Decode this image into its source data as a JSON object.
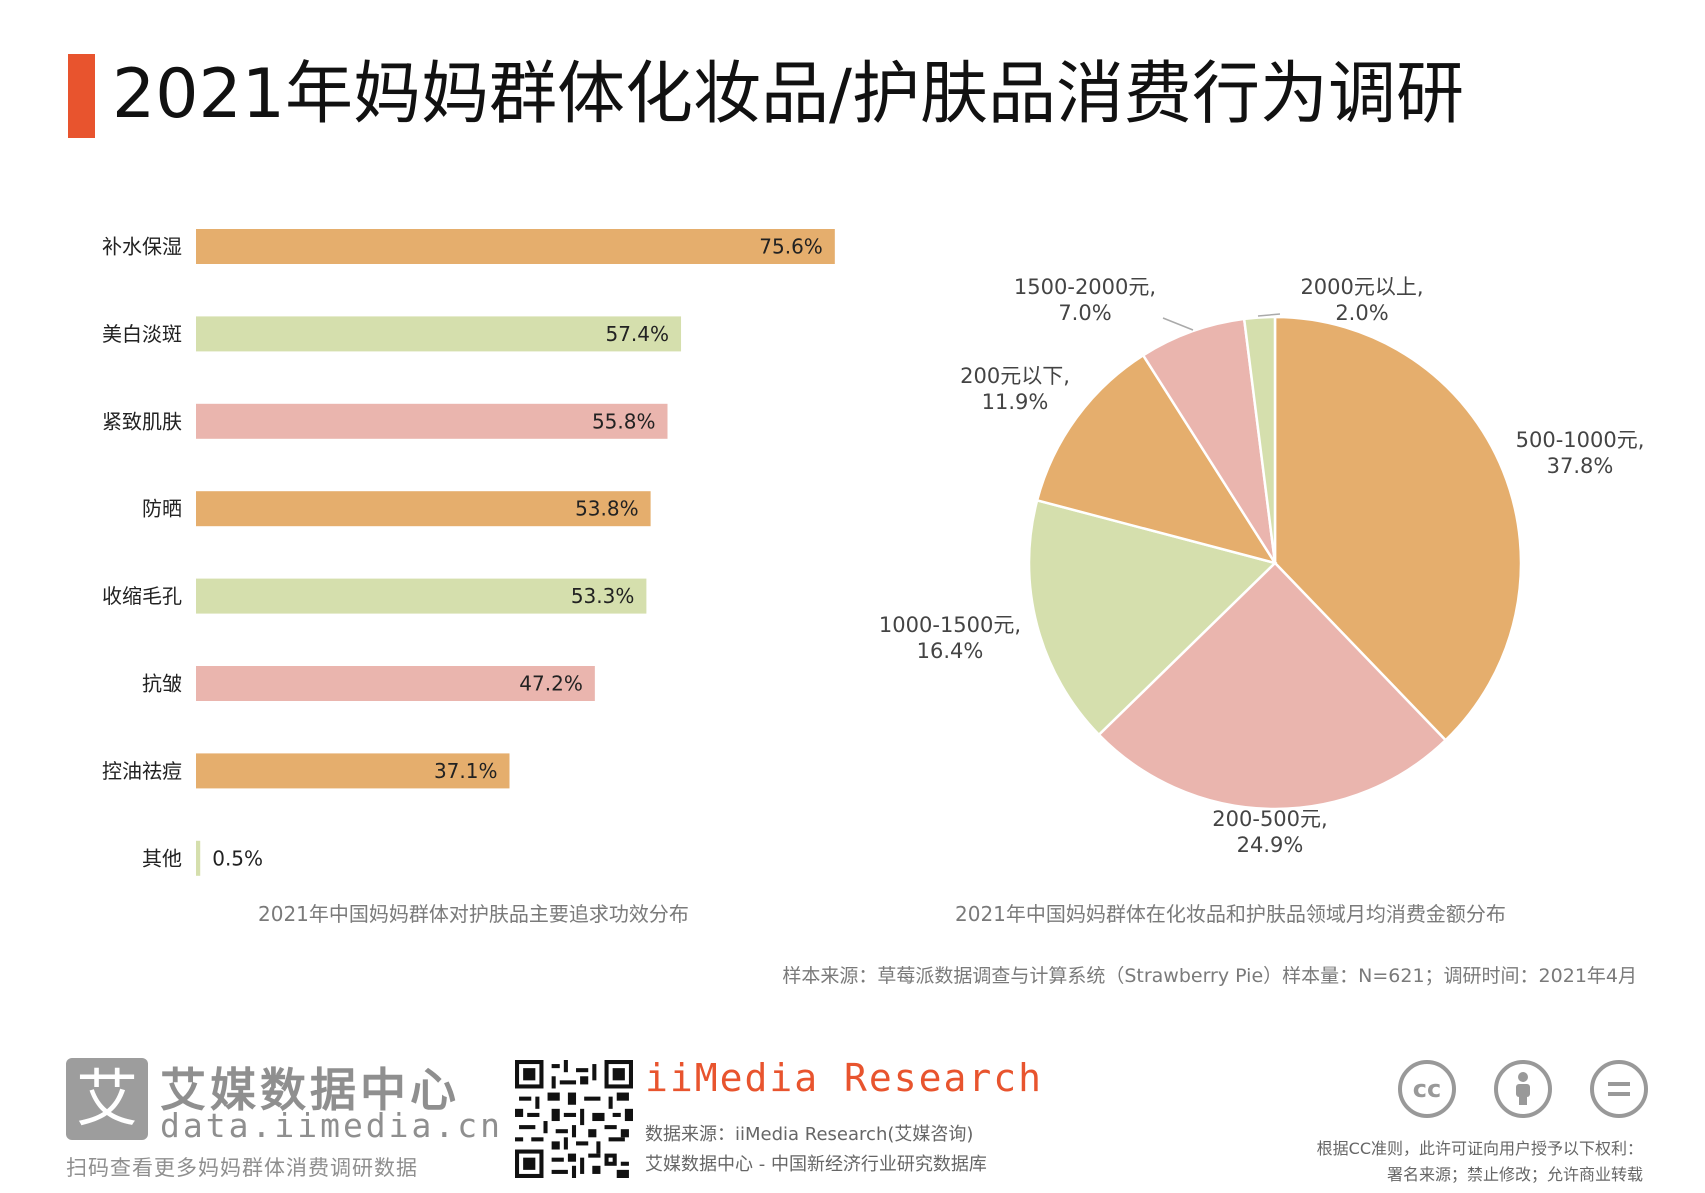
{
  "title": "2021年妈妈群体化妆品/护肤品消费行为调研",
  "chart_data": [
    {
      "type": "bar",
      "orientation": "horizontal",
      "categories": [
        "补水保湿",
        "美白淡斑",
        "紧致肌肤",
        "防晒",
        "收缩毛孔",
        "抗皱",
        "控油祛痘",
        "其他"
      ],
      "values": [
        75.6,
        57.4,
        55.8,
        53.8,
        53.3,
        47.2,
        37.1,
        0.5
      ],
      "value_labels": [
        "75.6%",
        "57.4%",
        "55.8%",
        "53.8%",
        "53.3%",
        "47.2%",
        "37.1%",
        "0.5%"
      ],
      "colors": [
        "#e5ae6d",
        "#d5dfad",
        "#eab5ae",
        "#e5ae6d",
        "#d5dfad",
        "#eab5ae",
        "#e5ae6d",
        "#d5dfad"
      ],
      "unit": "%",
      "xlim": [
        0,
        100
      ],
      "grid": false,
      "caption": "2021年中国妈妈群体对护肤品主要追求功效分布"
    },
    {
      "type": "pie",
      "slices": [
        {
          "label": "500-1000元,",
          "pct_label": "37.8%",
          "value": 37.8,
          "color": "#e5ae6d"
        },
        {
          "label": "200-500元,",
          "pct_label": "24.9%",
          "value": 24.9,
          "color": "#eab5ae"
        },
        {
          "label": "1000-1500元,",
          "pct_label": "16.4%",
          "value": 16.4,
          "color": "#d5dfad"
        },
        {
          "label": "200元以下,",
          "pct_label": "11.9%",
          "value": 11.9,
          "color": "#e5ae6d"
        },
        {
          "label": "1500-2000元,",
          "pct_label": "7.0%",
          "value": 7.0,
          "color": "#eab5ae"
        },
        {
          "label": "2000元以上,",
          "pct_label": "2.0%",
          "value": 2.0,
          "color": "#d5dfad"
        }
      ],
      "start": "12 o'clock",
      "direction": "clockwise",
      "caption": "2021年中国妈妈群体在化妆品和护肤品领域月均消费金额分布"
    }
  ],
  "source_note": "样本来源：草莓派数据调查与计算系统（Strawberry Pie）样本量：N=621；调研时间：2021年4月",
  "footer": {
    "logo_char": "艾",
    "logo_name": "艾媒数据中心",
    "logo_url": "data.iimedia.cn",
    "scan_text": "扫码查看更多妈妈群体消费调研数据",
    "brand": "iiMedia Research",
    "brand_source": "数据来源：iiMedia Research(艾媒咨询)",
    "brand_desc": "艾媒数据中心 - 中国新经济行业研究数据库",
    "cc_icons": [
      "cc",
      "person",
      "equals"
    ],
    "cc_note_1": "根据CC准则，此许可证向用户授予以下权利：",
    "cc_note_2": "署名来源；禁止修改；允许商业转载"
  }
}
